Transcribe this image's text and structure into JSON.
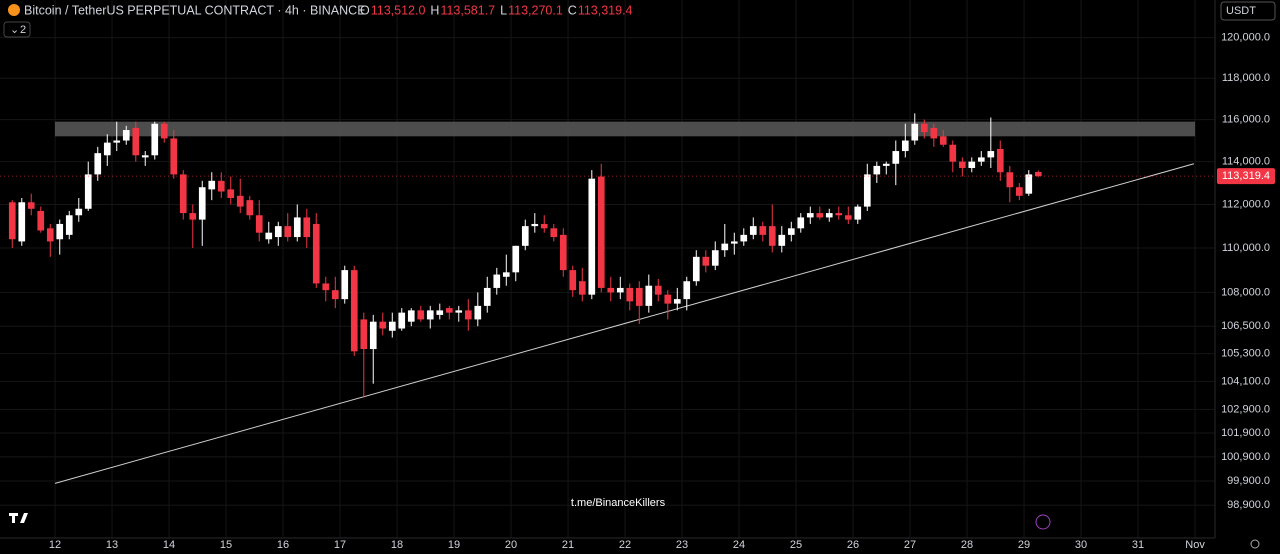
{
  "chart_data": {
    "type": "candlestick",
    "title": "Bitcoin / TetherUS PERPETUAL CONTRACT · 4h · BINANCE",
    "legend_values": [
      {
        "key": "O",
        "label": "113,512.0"
      },
      {
        "key": "H",
        "label": "113,581.7"
      },
      {
        "key": "L",
        "label": "113,270.1"
      },
      {
        "key": "C",
        "label": "113,319.4"
      }
    ],
    "currency": "USDT",
    "indicator_count": "2",
    "watermark": "t.me/BinanceKillers",
    "last_price": {
      "value": 113319.4,
      "label": "113,319.4"
    },
    "log_scale": true,
    "grid": true,
    "up_color": "#ffffff",
    "down_color": "#f23645",
    "xlim": [
      11.035,
      32.35
    ],
    "ylim": [
      97490,
      121880
    ],
    "xticks": [
      12,
      13,
      14,
      15,
      16,
      17,
      18,
      19,
      20,
      21,
      22,
      23,
      24,
      25,
      26,
      27,
      28,
      29,
      30,
      31,
      {
        "value": 32,
        "label": "Nov"
      }
    ],
    "yticks": [
      {
        "value": 120000,
        "label": "120,000.0"
      },
      {
        "value": 118000,
        "label": "118,000.0"
      },
      {
        "value": 116000,
        "label": "116,000.0"
      },
      {
        "value": 114000,
        "label": "114,000.0"
      },
      {
        "value": 112000,
        "label": "112,000.0"
      },
      {
        "value": 110000,
        "label": "110,000.0"
      },
      {
        "value": 108000,
        "label": "108,000.0"
      },
      {
        "value": 106500,
        "label": "106,500.0"
      },
      {
        "value": 105300,
        "label": "105,300.0"
      },
      {
        "value": 104100,
        "label": "104,100.0"
      },
      {
        "value": 102900,
        "label": "102,900.0"
      },
      {
        "value": 101900,
        "label": "101,900.0"
      },
      {
        "value": 100900,
        "label": "100,900.0"
      },
      {
        "value": 99900,
        "label": "99,900.0"
      },
      {
        "value": 98900,
        "label": "98,900.0"
      }
    ],
    "zone": {
      "color": "#5a5a5a",
      "ylim": [
        115200,
        115900
      ]
    },
    "trendline": {
      "color": "#d0d0d0",
      "x": [
        12,
        31.98
      ],
      "y": [
        99800,
        113900
      ]
    },
    "x": [
      11.25,
      11.417,
      11.583,
      11.75,
      11.917,
      12.083,
      12.25,
      12.417,
      12.583,
      12.75,
      12.917,
      13.083,
      13.25,
      13.417,
      13.583,
      13.75,
      13.917,
      14.083,
      14.25,
      14.417,
      14.583,
      14.75,
      14.917,
      15.083,
      15.25,
      15.417,
      15.583,
      15.75,
      15.917,
      16.083,
      16.25,
      16.417,
      16.583,
      16.75,
      16.917,
      17.083,
      17.25,
      17.417,
      17.583,
      17.75,
      17.917,
      18.083,
      18.25,
      18.417,
      18.583,
      18.75,
      18.917,
      19.083,
      19.25,
      19.417,
      19.583,
      19.75,
      19.917,
      20.083,
      20.25,
      20.417,
      20.583,
      20.75,
      20.917,
      21.083,
      21.25,
      21.417,
      21.583,
      21.75,
      21.917,
      22.083,
      22.25,
      22.417,
      22.583,
      22.75,
      22.917,
      23.083,
      23.25,
      23.417,
      23.583,
      23.75,
      23.917,
      24.083,
      24.25,
      24.417,
      24.583,
      24.75,
      24.917,
      25.083,
      25.25,
      25.417,
      25.583,
      25.75,
      25.917,
      26.083,
      26.25,
      26.417,
      26.583,
      26.75,
      26.917,
      27.083,
      27.25,
      27.417,
      27.583,
      27.75,
      27.917,
      28.083,
      28.25,
      28.417,
      28.583,
      28.75,
      28.917,
      29.083,
      29.25
    ],
    "open": [
      112100,
      110300,
      112100,
      111700,
      110900,
      110400,
      110600,
      111500,
      111800,
      113400,
      114300,
      114900,
      115000,
      115600,
      114200,
      114300,
      115800,
      115100,
      113400,
      111600,
      111300,
      112700,
      113100,
      112700,
      112400,
      112200,
      111500,
      110400,
      110500,
      111000,
      110500,
      111400,
      111100,
      108400,
      108100,
      107700,
      109000,
      106800,
      105500,
      106700,
      106300,
      106400,
      106700,
      107200,
      106800,
      107000,
      107300,
      107100,
      107200,
      106800,
      107400,
      108200,
      108700,
      108900,
      110100,
      111000,
      111100,
      110900,
      110600,
      109000,
      108500,
      107900,
      113300,
      108200,
      108000,
      108200,
      108200,
      107400,
      108300,
      107900,
      107500,
      107700,
      108500,
      109600,
      109200,
      109900,
      110200,
      110300,
      110600,
      111000,
      111000,
      110100,
      110600,
      110900,
      111400,
      111600,
      111400,
      111600,
      111500,
      111300,
      111900,
      113400,
      113800,
      113900,
      114500,
      115000,
      115800,
      115600,
      115200,
      114800,
      114000,
      113700,
      114000,
      114200,
      114600,
      113500,
      112800,
      112500,
      113512
    ],
    "high": [
      112200,
      112300,
      112500,
      111900,
      111100,
      111300,
      111700,
      112300,
      114000,
      114700,
      115300,
      115900,
      115700,
      115900,
      114500,
      115900,
      115900,
      115500,
      113600,
      112000,
      113100,
      113500,
      113500,
      113300,
      113200,
      112400,
      112200,
      111200,
      111200,
      111600,
      112000,
      111800,
      111600,
      108700,
      108700,
      109200,
      109200,
      107100,
      107000,
      107100,
      107100,
      107300,
      107300,
      107400,
      107400,
      107500,
      107400,
      107400,
      107700,
      108000,
      108700,
      109100,
      109700,
      110100,
      111300,
      111600,
      111500,
      111100,
      110900,
      109200,
      109100,
      113600,
      113900,
      108700,
      108700,
      108400,
      108500,
      108800,
      108600,
      108100,
      108200,
      108700,
      109900,
      109900,
      110300,
      111100,
      110700,
      110900,
      111400,
      111200,
      112000,
      111000,
      111200,
      111600,
      111900,
      111900,
      111800,
      111900,
      111900,
      112000,
      113900,
      114000,
      114000,
      115000,
      115800,
      116300,
      116000,
      115800,
      115500,
      115000,
      114200,
      114200,
      114500,
      116100,
      115000,
      113800,
      113000,
      113600,
      113581.7
    ],
    "low": [
      110000,
      110100,
      111500,
      110700,
      109600,
      109700,
      110400,
      111200,
      111700,
      113100,
      113800,
      114500,
      114800,
      114000,
      113800,
      114100,
      114900,
      113200,
      111300,
      110000,
      110100,
      112200,
      112300,
      112000,
      111600,
      111300,
      110300,
      110200,
      110100,
      110300,
      110300,
      110000,
      108200,
      107600,
      107300,
      107500,
      105200,
      103400,
      104000,
      106100,
      106000,
      106300,
      106500,
      106700,
      106400,
      106800,
      106800,
      106700,
      106300,
      106500,
      107100,
      107900,
      108300,
      108500,
      109900,
      110700,
      110700,
      110300,
      108700,
      107800,
      107600,
      107700,
      108000,
      107600,
      107700,
      107200,
      106600,
      107100,
      107600,
      106800,
      107200,
      107200,
      108300,
      108900,
      109000,
      109600,
      109700,
      110100,
      110400,
      110300,
      109800,
      109800,
      110300,
      110700,
      111100,
      111300,
      111200,
      111300,
      111100,
      111100,
      111700,
      113000,
      113400,
      112900,
      114200,
      114800,
      115100,
      114700,
      114700,
      113500,
      113300,
      113500,
      113800,
      113700,
      113100,
      112100,
      112200,
      112400,
      113270.1
    ],
    "close": [
      110400,
      112100,
      111800,
      110800,
      110300,
      111100,
      111500,
      111800,
      113400,
      114400,
      114900,
      115000,
      115500,
      114300,
      114300,
      115800,
      115100,
      113400,
      111600,
      111300,
      112800,
      113100,
      112600,
      112300,
      111900,
      111500,
      110700,
      110700,
      111000,
      110500,
      111400,
      110500,
      108400,
      108100,
      107700,
      109000,
      105400,
      105500,
      106700,
      106400,
      106700,
      107100,
      107200,
      106800,
      107200,
      107200,
      107100,
      107200,
      106800,
      107400,
      108200,
      108800,
      108900,
      110100,
      111000,
      111100,
      110900,
      110500,
      109000,
      108100,
      107900,
      113200,
      108200,
      108000,
      108200,
      107600,
      107400,
      108300,
      107900,
      107500,
      107700,
      108500,
      109600,
      109200,
      109900,
      110200,
      110300,
      110600,
      111000,
      110600,
      110100,
      110600,
      110900,
      111400,
      111600,
      111400,
      111600,
      111500,
      111300,
      111900,
      113400,
      113800,
      113900,
      114500,
      115000,
      115800,
      115400,
      115100,
      114800,
      114000,
      113700,
      114000,
      114200,
      114500,
      113500,
      112800,
      112400,
      113400,
      113319.4
    ]
  }
}
